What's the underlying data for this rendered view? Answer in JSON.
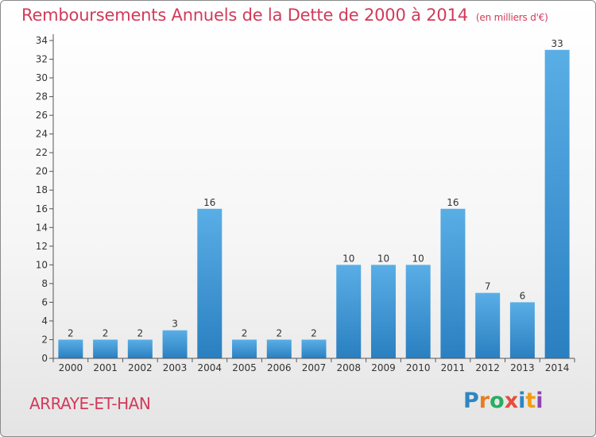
{
  "header": {
    "title": "Remboursements Annuels de la Dette de 2000 à 2014",
    "unit": "(en milliers d'€)"
  },
  "footer": {
    "commune": "ARRAYE-ET-HAN",
    "logo_letters": [
      {
        "ch": "P",
        "color": "#2e86c1"
      },
      {
        "ch": "r",
        "color": "#e67e22"
      },
      {
        "ch": "o",
        "color": "#27ae60"
      },
      {
        "ch": "x",
        "color": "#e74c3c"
      },
      {
        "ch": "i",
        "color": "#2e86c1"
      },
      {
        "ch": "t",
        "color": "#f39c12"
      },
      {
        "ch": "i",
        "color": "#8e44ad"
      }
    ]
  },
  "chart_data": {
    "type": "bar",
    "categories": [
      "2000",
      "2001",
      "2002",
      "2003",
      "2004",
      "2005",
      "2006",
      "2007",
      "2008",
      "2009",
      "2010",
      "2011",
      "2012",
      "2013",
      "2014"
    ],
    "values": [
      2,
      2,
      2,
      3,
      16,
      2,
      2,
      2,
      10,
      10,
      10,
      16,
      7,
      6,
      33
    ],
    "ylim": [
      0,
      34
    ],
    "yticks": [
      0,
      2,
      4,
      6,
      8,
      10,
      12,
      14,
      16,
      18,
      20,
      22,
      24,
      26,
      28,
      30,
      32,
      34
    ],
    "grid": false,
    "colors": {
      "bar_light": "#5aaee6",
      "bar_dark": "#2a7fc0",
      "axis": "#555555",
      "text": "#333333"
    }
  }
}
